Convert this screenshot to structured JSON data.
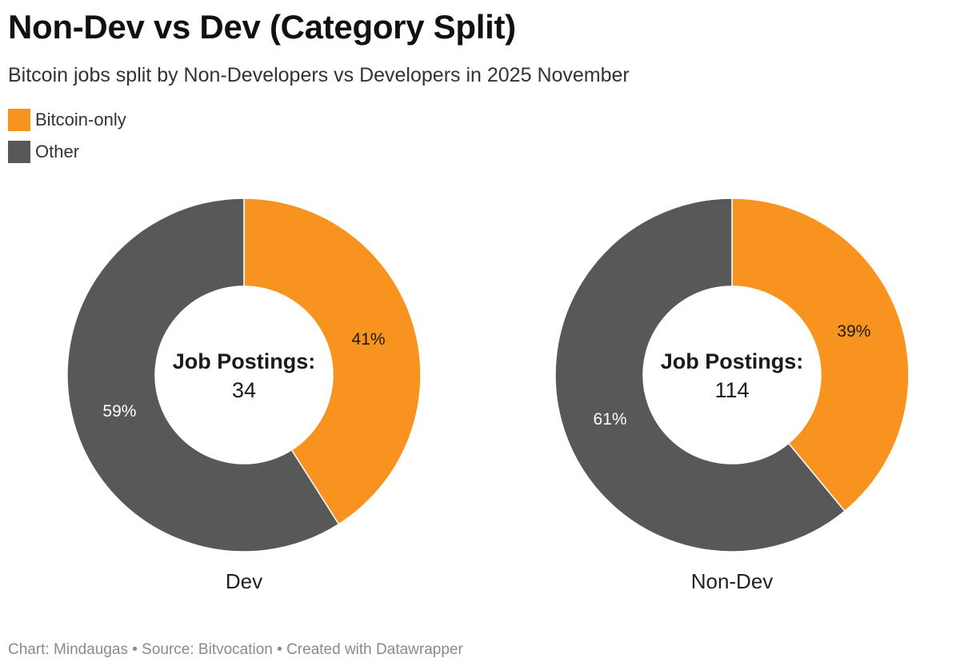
{
  "header": {
    "title": "Non-Dev vs Dev (Category Split)",
    "subtitle": "Bitcoin jobs split by Non-Developers vs Developers in 2025 November"
  },
  "legend": [
    {
      "label": "Bitcoin-only",
      "color": "#f7931e"
    },
    {
      "label": "Other",
      "color": "#585858"
    }
  ],
  "footer": {
    "credit": "Chart: Mindaugas • Source: Bitvocation • Created with Datawrapper"
  },
  "chart_data": [
    {
      "type": "pie",
      "name": "Dev",
      "center_label": "Job Postings:",
      "center_value": "34",
      "slices": [
        {
          "label": "Bitcoin-only",
          "value": 41,
          "display": "41%",
          "color": "#f7931e"
        },
        {
          "label": "Other",
          "value": 59,
          "display": "59%",
          "color": "#585858"
        }
      ]
    },
    {
      "type": "pie",
      "name": "Non-Dev",
      "center_label": "Job Postings:",
      "center_value": "114",
      "slices": [
        {
          "label": "Bitcoin-only",
          "value": 39,
          "display": "39%",
          "color": "#f7931e"
        },
        {
          "label": "Other",
          "value": 61,
          "display": "61%",
          "color": "#585858"
        }
      ]
    }
  ]
}
